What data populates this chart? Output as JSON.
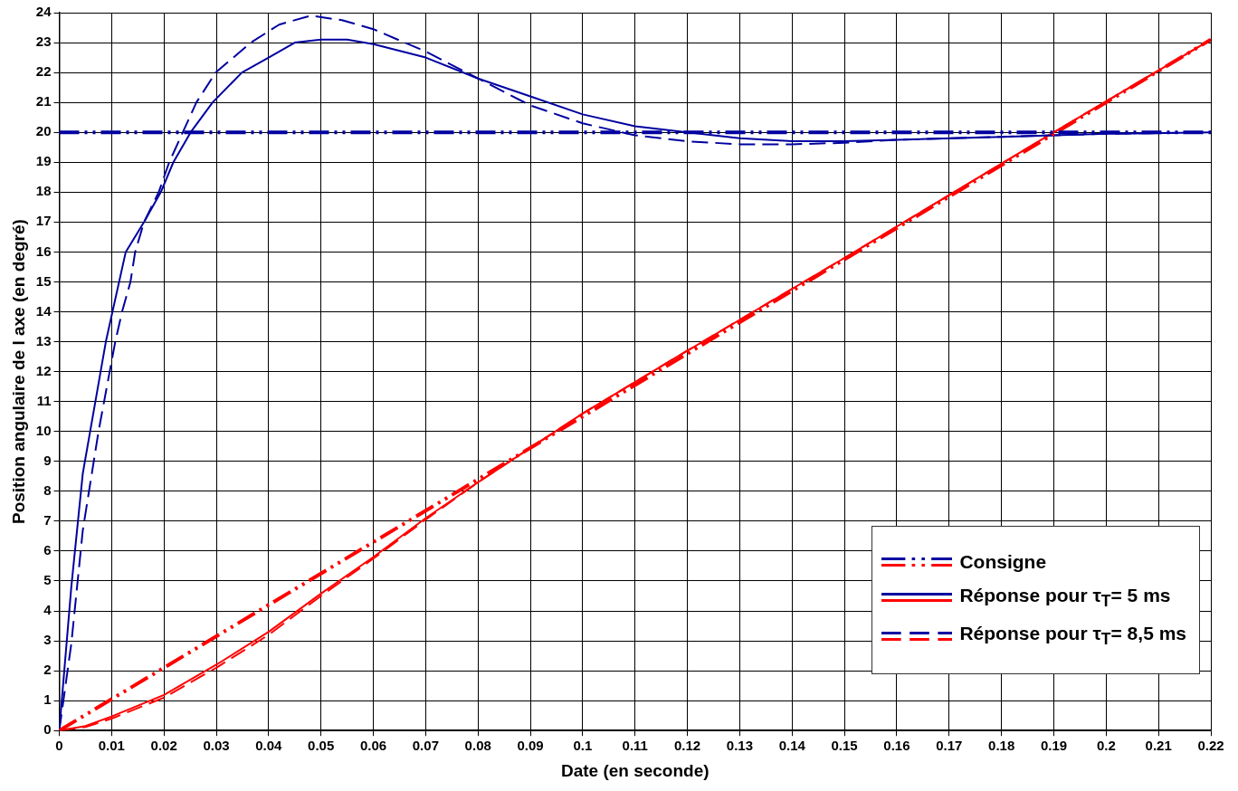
{
  "chart_data": {
    "type": "line",
    "xlabel": "Date (en seconde)",
    "ylabel": "Position angulaire de l axe (en degré)",
    "xlim": [
      0,
      0.22
    ],
    "xticks": [
      0,
      0.01,
      0.02,
      0.03,
      0.04,
      0.05,
      0.06,
      0.07,
      0.08,
      0.09,
      0.1,
      0.11,
      0.12,
      0.13,
      0.14,
      0.15,
      0.16,
      0.17,
      0.18,
      0.19,
      0.2,
      0.21,
      0.22
    ],
    "ylim": [
      0,
      24
    ],
    "yticks": [
      0,
      1,
      2,
      3,
      4,
      5,
      6,
      7,
      8,
      9,
      10,
      11,
      12,
      13,
      14,
      15,
      16,
      17,
      18,
      19,
      20,
      21,
      22,
      23,
      24
    ],
    "grid": true,
    "legend": "bottom right",
    "marker": "none",
    "series": [
      {
        "name": "Consigne",
        "color": "#0000a0",
        "line_style": "dashdot",
        "x": [
          0,
          0.22
        ],
        "values": [
          20,
          20
        ]
      },
      {
        "color": "#ff0000",
        "line_style": "dashdot",
        "x": [
          0,
          0.22
        ],
        "values": [
          0,
          23.1
        ]
      },
      {
        "name": "Réponse pour τ$_{T}$= 5 ms",
        "color": "#0000a0",
        "line_style": "solid",
        "x": [
          0,
          0.0023,
          0.0045,
          0.0089,
          0.0127,
          0.0162,
          0.0194,
          0.0218,
          0.0251,
          0.0293,
          0.0349,
          0.04,
          0.045,
          0.05,
          0.055,
          0.06,
          0.07,
          0.08,
          0.09,
          0.1,
          0.11,
          0.12,
          0.13,
          0.14,
          0.15,
          0.16,
          0.18,
          0.2,
          0.22
        ],
        "values": [
          0,
          4.8,
          8.6,
          13,
          16,
          17,
          18,
          19,
          20,
          21,
          22,
          22.5,
          23,
          23.1,
          23.1,
          22.95,
          22.5,
          21.8,
          21.2,
          20.6,
          20.2,
          20,
          19.8,
          19.7,
          19.7,
          19.75,
          19.85,
          19.95,
          20
        ]
      },
      {
        "color": "#ff0000",
        "line_style": "solid",
        "x": [
          0,
          0.005,
          0.01,
          0.02,
          0.03,
          0.04,
          0.05,
          0.06,
          0.07,
          0.08,
          0.1,
          0.12,
          0.15,
          0.19,
          0.22
        ],
        "values": [
          0,
          0.15,
          0.47,
          1.19,
          2.2,
          3.3,
          4.58,
          5.8,
          7.1,
          8.3,
          10.6,
          12.7,
          15.8,
          20,
          23.1
        ]
      },
      {
        "name": "Réponse pour τ$_{T}$= 8,5 ms",
        "color": "#0000a0",
        "line_style": "dashed",
        "x": [
          0,
          0.0023,
          0.0045,
          0.0075,
          0.0107,
          0.012,
          0.0136,
          0.0145,
          0.0162,
          0.019,
          0.021,
          0.0236,
          0.0262,
          0.0299,
          0.0366,
          0.042,
          0.048,
          0.054,
          0.06,
          0.07,
          0.08,
          0.09,
          0.1,
          0.11,
          0.12,
          0.13,
          0.14,
          0.15,
          0.16,
          0.18,
          0.2,
          0.22
        ],
        "values": [
          0,
          2.9,
          6.7,
          10,
          13,
          14,
          15,
          16,
          17,
          18,
          19,
          20,
          21,
          22,
          23,
          23.6,
          23.9,
          23.75,
          23.45,
          22.7,
          21.8,
          20.9,
          20.3,
          19.9,
          19.7,
          19.6,
          19.6,
          19.65,
          19.75,
          19.85,
          19.95,
          20
        ]
      },
      {
        "color": "#ff0000",
        "line_style": "dashed",
        "x": [
          0,
          0.005,
          0.01,
          0.02,
          0.03,
          0.04,
          0.05,
          0.06,
          0.07,
          0.08,
          0.1,
          0.12,
          0.15,
          0.19,
          0.22
        ],
        "values": [
          0,
          0.12,
          0.4,
          1.1,
          2.1,
          3.2,
          4.5,
          5.75,
          7.05,
          8.3,
          10.6,
          12.7,
          15.8,
          20,
          23.1
        ]
      }
    ]
  }
}
